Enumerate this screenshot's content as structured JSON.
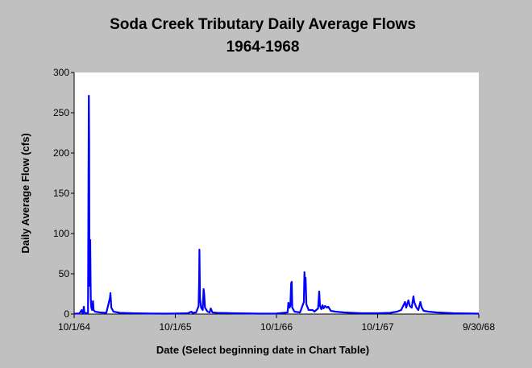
{
  "chart_data": {
    "type": "line",
    "title": "Soda Creek Tributary Daily Average Flows",
    "subtitle": "1964-1968",
    "xlabel": "Date (Select beginning date in Chart Table)",
    "ylabel": "Daily Average Flow (cfs)",
    "x_ticks": [
      "10/1/64",
      "10/1/65",
      "10/1/66",
      "10/1/67",
      "9/30/68"
    ],
    "xlim": [
      "1964-10-01",
      "1968-09-30"
    ],
    "ylim": [
      0,
      300
    ],
    "y_ticks": [
      0,
      50,
      100,
      150,
      200,
      250,
      300
    ],
    "grid": false,
    "legend": "none",
    "line_color": "#0000ff",
    "background_color": "#c0c0c0",
    "plot_color": "#ffffff",
    "series": [
      {
        "points": [
          [
            "1964-10-01",
            0.5
          ],
          [
            "1964-10-10",
            0.6
          ],
          [
            "1964-10-20",
            0.8
          ],
          [
            "1964-10-28",
            5
          ],
          [
            "1964-10-30",
            1.5
          ],
          [
            "1964-11-02",
            1
          ],
          [
            "1964-11-05",
            9
          ],
          [
            "1964-11-07",
            2
          ],
          [
            "1964-11-10",
            1.5
          ],
          [
            "1964-11-20",
            1
          ],
          [
            "1964-11-23",
            271
          ],
          [
            "1964-11-24",
            215
          ],
          [
            "1964-11-25",
            60
          ],
          [
            "1964-11-26",
            35
          ],
          [
            "1964-11-28",
            92
          ],
          [
            "1964-11-29",
            50
          ],
          [
            "1964-11-30",
            20
          ],
          [
            "1964-12-02",
            8
          ],
          [
            "1964-12-05",
            5
          ],
          [
            "1964-12-08",
            16
          ],
          [
            "1964-12-10",
            5
          ],
          [
            "1964-12-15",
            3
          ],
          [
            "1965-01-01",
            2
          ],
          [
            "1965-01-25",
            1.5
          ],
          [
            "1965-02-07",
            20
          ],
          [
            "1965-02-09",
            26
          ],
          [
            "1965-02-12",
            8
          ],
          [
            "1965-02-20",
            3
          ],
          [
            "1965-03-15",
            1.5
          ],
          [
            "1965-05-01",
            1
          ],
          [
            "1965-07-01",
            0.6
          ],
          [
            "1965-09-01",
            0.5
          ],
          [
            "1965-10-01",
            0.7
          ],
          [
            "1965-11-15",
            1
          ],
          [
            "1965-11-28",
            3
          ],
          [
            "1965-12-02",
            1.5
          ],
          [
            "1965-12-15",
            2
          ],
          [
            "1965-12-24",
            10
          ],
          [
            "1965-12-26",
            45
          ],
          [
            "1965-12-27",
            80
          ],
          [
            "1965-12-29",
            20
          ],
          [
            "1966-01-02",
            8
          ],
          [
            "1966-01-08",
            5
          ],
          [
            "1966-01-11",
            31
          ],
          [
            "1966-01-13",
            25
          ],
          [
            "1966-01-16",
            8
          ],
          [
            "1966-01-25",
            3
          ],
          [
            "1966-02-02",
            2
          ],
          [
            "1966-02-06",
            7
          ],
          [
            "1966-02-12",
            2
          ],
          [
            "1966-03-01",
            1.5
          ],
          [
            "1966-05-01",
            1
          ],
          [
            "1966-08-01",
            0.5
          ],
          [
            "1966-10-01",
            0.6
          ],
          [
            "1966-11-10",
            2
          ],
          [
            "1966-11-13",
            14
          ],
          [
            "1966-11-17",
            8
          ],
          [
            "1966-11-20",
            10
          ],
          [
            "1966-11-23",
            38
          ],
          [
            "1966-11-25",
            40
          ],
          [
            "1966-11-27",
            8
          ],
          [
            "1966-12-05",
            3
          ],
          [
            "1966-12-25",
            2
          ],
          [
            "1967-01-08",
            15
          ],
          [
            "1967-01-10",
            52
          ],
          [
            "1967-01-12",
            36
          ],
          [
            "1967-01-14",
            45
          ],
          [
            "1967-01-17",
            12
          ],
          [
            "1967-01-25",
            5
          ],
          [
            "1967-02-08",
            5
          ],
          [
            "1967-02-15",
            3
          ],
          [
            "1967-02-28",
            7
          ],
          [
            "1967-03-04",
            28
          ],
          [
            "1967-03-07",
            10
          ],
          [
            "1967-03-12",
            6
          ],
          [
            "1967-03-16",
            11
          ],
          [
            "1967-03-20",
            7
          ],
          [
            "1967-03-25",
            10
          ],
          [
            "1967-04-01",
            8
          ],
          [
            "1967-04-06",
            9
          ],
          [
            "1967-04-15",
            4
          ],
          [
            "1967-05-01",
            3
          ],
          [
            "1967-06-01",
            2
          ],
          [
            "1967-08-01",
            1
          ],
          [
            "1967-10-01",
            1
          ],
          [
            "1967-11-15",
            1.5
          ],
          [
            "1967-12-10",
            3
          ],
          [
            "1967-12-25",
            5
          ],
          [
            "1968-01-08",
            15
          ],
          [
            "1968-01-12",
            8
          ],
          [
            "1968-01-20",
            17
          ],
          [
            "1968-01-25",
            10
          ],
          [
            "1968-02-01",
            8
          ],
          [
            "1968-02-07",
            22
          ],
          [
            "1968-02-10",
            15
          ],
          [
            "1968-02-18",
            8
          ],
          [
            "1968-02-25",
            5
          ],
          [
            "1968-03-03",
            15
          ],
          [
            "1968-03-08",
            8
          ],
          [
            "1968-03-15",
            4
          ],
          [
            "1968-04-01",
            3
          ],
          [
            "1968-05-01",
            2
          ],
          [
            "1968-07-01",
            1
          ],
          [
            "1968-09-30",
            0.5
          ]
        ]
      }
    ]
  }
}
